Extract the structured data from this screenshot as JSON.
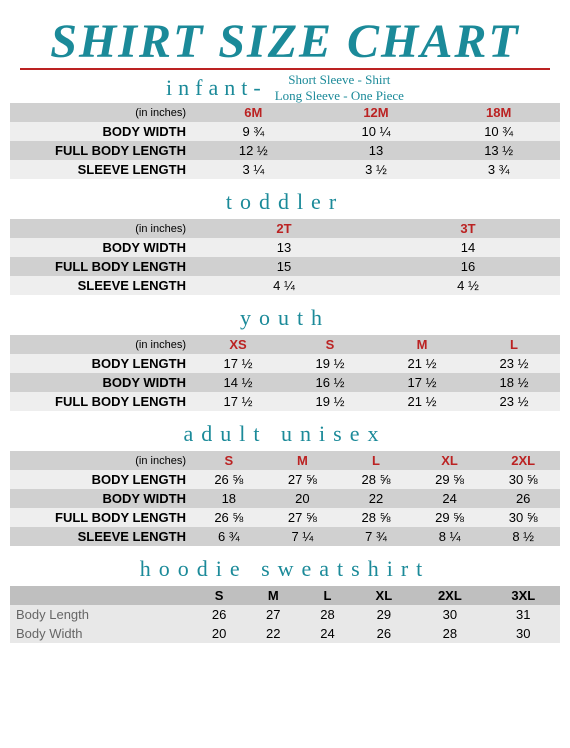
{
  "title": "SHIRT SIZE CHART",
  "colors": {
    "accent": "#1b8a99",
    "rule": "#b22222",
    "band_dark": "#d0d0d0",
    "band_light": "#eeeeee",
    "hoodie_head": "#bfbfbf",
    "hoodie_row": "#e8e8e8"
  },
  "infant": {
    "title": "infant-",
    "subtitle1": "Short Sleeve - Shirt",
    "subtitle2": "Long Sleeve - One Piece",
    "unit": "(in inches)",
    "sizes": [
      "6M",
      "12M",
      "18M"
    ],
    "rows": [
      {
        "label": "BODY WIDTH",
        "vals": [
          "9 ¾",
          "10 ¼",
          "10 ¾"
        ]
      },
      {
        "label": "FULL BODY LENGTH",
        "vals": [
          "12 ½",
          "13",
          "13 ½"
        ]
      },
      {
        "label": "SLEEVE LENGTH",
        "vals": [
          "3 ¼",
          "3 ½",
          "3 ¾"
        ]
      }
    ]
  },
  "toddler": {
    "title": "toddler",
    "unit": "(in inches)",
    "sizes": [
      "2T",
      "3T"
    ],
    "rows": [
      {
        "label": "BODY WIDTH",
        "vals": [
          "13",
          "14"
        ]
      },
      {
        "label": "FULL BODY LENGTH",
        "vals": [
          "15",
          "16"
        ]
      },
      {
        "label": "SLEEVE LENGTH",
        "vals": [
          "4 ¼",
          "4 ½"
        ]
      }
    ]
  },
  "youth": {
    "title": "youth",
    "unit": "(in inches)",
    "sizes": [
      "XS",
      "S",
      "M",
      "L"
    ],
    "rows": [
      {
        "label": "BODY LENGTH",
        "vals": [
          "17 ½",
          "19 ½",
          "21 ½",
          "23 ½"
        ]
      },
      {
        "label": "BODY WIDTH",
        "vals": [
          "14 ½",
          "16 ½",
          "17 ½",
          "18 ½"
        ]
      },
      {
        "label": "FULL BODY LENGTH",
        "vals": [
          "17 ½",
          "19 ½",
          "21 ½",
          "23 ½"
        ]
      }
    ]
  },
  "adult": {
    "title": "adult  unisex",
    "unit": "(in inches)",
    "sizes": [
      "S",
      "M",
      "L",
      "XL",
      "2XL"
    ],
    "rows": [
      {
        "label": "BODY LENGTH",
        "vals": [
          "26 ⅝",
          "27 ⅝",
          "28 ⅝",
          "29 ⅝",
          "30 ⅝"
        ]
      },
      {
        "label": "BODY WIDTH",
        "vals": [
          "18",
          "20",
          "22",
          "24",
          "26"
        ]
      },
      {
        "label": "FULL BODY LENGTH",
        "vals": [
          "26 ⅝",
          "27 ⅝",
          "28 ⅝",
          "29 ⅝",
          "30 ⅝"
        ]
      },
      {
        "label": "SLEEVE LENGTH",
        "vals": [
          "6 ¾",
          "7 ¼",
          "7 ¾",
          "8 ¼",
          "8 ½"
        ]
      }
    ]
  },
  "hoodie": {
    "title": "hoodie sweatshirt",
    "sizes": [
      "S",
      "M",
      "L",
      "XL",
      "2XL",
      "3XL"
    ],
    "rows": [
      {
        "label": "Body Length",
        "vals": [
          "26",
          "27",
          "28",
          "29",
          "30",
          "31"
        ]
      },
      {
        "label": "Body Width",
        "vals": [
          "20",
          "22",
          "24",
          "26",
          "28",
          "30"
        ]
      }
    ]
  }
}
